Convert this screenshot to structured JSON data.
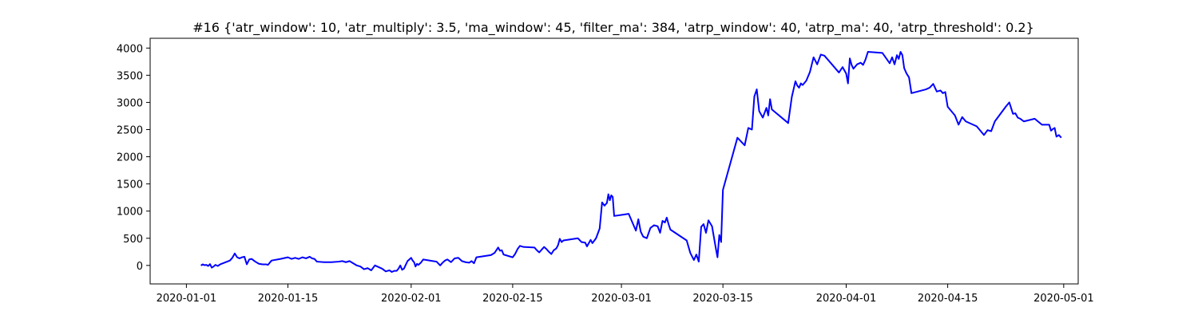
{
  "chart_data": {
    "type": "line",
    "title": "#16 {'atr_window': 10, 'atr_multiply': 3.5, 'ma_window': 45, 'filter_ma': 384, 'atrp_window': 40, 'atrp_ma': 40, 'atrp_threshold': 0.2}",
    "xlabel": "",
    "ylabel": "",
    "x_axis": {
      "type": "date",
      "range": [
        "2019-12-27",
        "2020-05-03"
      ],
      "ticks": [
        {
          "date": "2020-01-01",
          "label": "2020-01-01"
        },
        {
          "date": "2020-01-15",
          "label": "2020-01-15"
        },
        {
          "date": "2020-02-01",
          "label": "2020-02-01"
        },
        {
          "date": "2020-02-15",
          "label": "2020-02-15"
        },
        {
          "date": "2020-03-01",
          "label": "2020-03-01"
        },
        {
          "date": "2020-03-15",
          "label": "2020-03-15"
        },
        {
          "date": "2020-04-01",
          "label": "2020-04-01"
        },
        {
          "date": "2020-04-15",
          "label": "2020-04-15"
        },
        {
          "date": "2020-05-01",
          "label": "2020-05-01"
        }
      ]
    },
    "y_axis": {
      "range": [
        -340,
        4180
      ],
      "ticks": [
        0,
        500,
        1000,
        1500,
        2000,
        2500,
        3000,
        3500,
        4000
      ]
    },
    "grid": false,
    "legend": "none",
    "color": "#0000ff",
    "series": [
      {
        "points": [
          [
            "2020-01-03",
            0
          ],
          [
            "2020-01-03",
            20
          ],
          [
            "2020-01-03",
            5
          ],
          [
            "2020-01-03",
            10
          ],
          [
            "2020-01-04",
            -10
          ],
          [
            "2020-01-04",
            25
          ],
          [
            "2020-01-04",
            -40
          ],
          [
            "2020-01-04",
            -20
          ],
          [
            "2020-01-05",
            10
          ],
          [
            "2020-01-05",
            -10
          ],
          [
            "2020-01-05",
            20
          ],
          [
            "2020-01-07",
            90
          ],
          [
            "2020-01-07",
            140
          ],
          [
            "2020-01-07",
            220
          ],
          [
            "2020-01-08",
            150
          ],
          [
            "2020-01-08",
            130
          ],
          [
            "2020-01-08",
            150
          ],
          [
            "2020-01-09",
            160
          ],
          [
            "2020-01-09",
            20
          ],
          [
            "2020-01-09",
            110
          ],
          [
            "2020-01-10",
            120
          ],
          [
            "2020-01-10",
            70
          ],
          [
            "2020-01-11",
            30
          ],
          [
            "2020-01-11",
            20
          ],
          [
            "2020-01-12",
            20
          ],
          [
            "2020-01-12",
            10
          ],
          [
            "2020-01-12",
            50
          ],
          [
            "2020-01-12",
            90
          ],
          [
            "2020-01-14",
            120
          ],
          [
            "2020-01-15",
            150
          ],
          [
            "2020-01-15",
            120
          ],
          [
            "2020-01-16",
            140
          ],
          [
            "2020-01-16",
            120
          ],
          [
            "2020-01-17",
            150
          ],
          [
            "2020-01-17",
            130
          ],
          [
            "2020-01-18",
            160
          ],
          [
            "2020-01-18",
            130
          ],
          [
            "2020-01-18",
            120
          ],
          [
            "2020-01-19",
            70
          ],
          [
            "2020-01-20",
            60
          ],
          [
            "2020-01-21",
            60
          ],
          [
            "2020-01-22",
            70
          ],
          [
            "2020-01-22",
            80
          ],
          [
            "2020-01-23",
            60
          ],
          [
            "2020-01-23",
            80
          ],
          [
            "2020-01-24",
            40
          ],
          [
            "2020-01-24",
            0
          ],
          [
            "2020-01-25",
            -20
          ],
          [
            "2020-01-25",
            -70
          ],
          [
            "2020-01-26",
            -50
          ],
          [
            "2020-01-26",
            -90
          ],
          [
            "2020-01-27",
            0
          ],
          [
            "2020-01-28",
            -60
          ],
          [
            "2020-01-28",
            -110
          ],
          [
            "2020-01-29",
            -90
          ],
          [
            "2020-01-29",
            -120
          ],
          [
            "2020-01-29",
            -100
          ],
          [
            "2020-01-30",
            -100
          ],
          [
            "2020-01-30",
            -60
          ],
          [
            "2020-01-30",
            0
          ],
          [
            "2020-01-30",
            -80
          ],
          [
            "2020-01-31",
            -60
          ],
          [
            "2020-01-31",
            80
          ],
          [
            "2020-02-01",
            140
          ],
          [
            "2020-02-01",
            90
          ],
          [
            "2020-02-01",
            60
          ],
          [
            "2020-02-01",
            -20
          ],
          [
            "2020-02-01",
            30
          ],
          [
            "2020-02-02",
            10
          ],
          [
            "2020-02-02",
            50
          ],
          [
            "2020-02-02",
            110
          ],
          [
            "2020-02-04",
            80
          ],
          [
            "2020-02-04",
            70
          ],
          [
            "2020-02-05",
            0
          ],
          [
            "2020-02-05",
            50
          ],
          [
            "2020-02-05",
            90
          ],
          [
            "2020-02-06",
            110
          ],
          [
            "2020-02-06",
            60
          ],
          [
            "2020-02-07",
            130
          ],
          [
            "2020-02-07",
            140
          ],
          [
            "2020-02-08",
            80
          ],
          [
            "2020-02-08",
            60
          ],
          [
            "2020-02-09",
            50
          ],
          [
            "2020-02-09",
            80
          ],
          [
            "2020-02-09",
            40
          ],
          [
            "2020-02-10",
            150
          ],
          [
            "2020-02-12",
            190
          ],
          [
            "2020-02-12",
            230
          ],
          [
            "2020-02-13",
            330
          ],
          [
            "2020-02-13",
            270
          ],
          [
            "2020-02-13",
            280
          ],
          [
            "2020-02-13",
            200
          ],
          [
            "2020-02-14",
            190
          ],
          [
            "2020-02-15",
            150
          ],
          [
            "2020-02-15",
            210
          ],
          [
            "2020-02-15",
            300
          ],
          [
            "2020-02-16",
            360
          ],
          [
            "2020-02-16",
            340
          ],
          [
            "2020-02-18",
            330
          ],
          [
            "2020-02-18",
            280
          ],
          [
            "2020-02-18",
            240
          ],
          [
            "2020-02-19",
            290
          ],
          [
            "2020-02-19",
            340
          ],
          [
            "2020-02-19",
            300
          ],
          [
            "2020-02-20",
            250
          ],
          [
            "2020-02-20",
            210
          ],
          [
            "2020-02-20",
            280
          ],
          [
            "2020-02-21",
            310
          ],
          [
            "2020-02-21",
            370
          ],
          [
            "2020-02-21",
            490
          ],
          [
            "2020-02-21",
            430
          ],
          [
            "2020-02-22",
            460
          ],
          [
            "2020-02-23",
            480
          ],
          [
            "2020-02-24",
            500
          ],
          [
            "2020-02-24",
            430
          ],
          [
            "2020-02-25",
            420
          ],
          [
            "2020-02-25",
            350
          ],
          [
            "2020-02-25",
            410
          ],
          [
            "2020-02-25",
            470
          ],
          [
            "2020-02-26",
            410
          ],
          [
            "2020-02-26",
            500
          ],
          [
            "2020-02-27",
            680
          ],
          [
            "2020-02-27",
            1160
          ],
          [
            "2020-02-27",
            1100
          ],
          [
            "2020-02-28",
            1150
          ],
          [
            "2020-02-28",
            1310
          ],
          [
            "2020-02-28",
            1200
          ],
          [
            "2020-02-28",
            1290
          ],
          [
            "2020-02-28",
            1260
          ],
          [
            "2020-02-29",
            910
          ],
          [
            "2020-03-01",
            930
          ],
          [
            "2020-03-02",
            950
          ],
          [
            "2020-03-03",
            640
          ],
          [
            "2020-03-03",
            850
          ],
          [
            "2020-03-03",
            620
          ],
          [
            "2020-03-04",
            530
          ],
          [
            "2020-03-04",
            500
          ],
          [
            "2020-03-05",
            690
          ],
          [
            "2020-03-05",
            740
          ],
          [
            "2020-03-06",
            720
          ],
          [
            "2020-03-06",
            600
          ],
          [
            "2020-03-06",
            820
          ],
          [
            "2020-03-07",
            790
          ],
          [
            "2020-03-07",
            880
          ],
          [
            "2020-03-07",
            760
          ],
          [
            "2020-03-07",
            660
          ],
          [
            "2020-03-10",
            460
          ],
          [
            "2020-03-10",
            230
          ],
          [
            "2020-03-11",
            100
          ],
          [
            "2020-03-11",
            200
          ],
          [
            "2020-03-11",
            70
          ],
          [
            "2020-03-12",
            710
          ],
          [
            "2020-03-12",
            760
          ],
          [
            "2020-03-12",
            600
          ],
          [
            "2020-03-13",
            830
          ],
          [
            "2020-03-13",
            720
          ],
          [
            "2020-03-14",
            330
          ],
          [
            "2020-03-14",
            150
          ],
          [
            "2020-03-14",
            560
          ],
          [
            "2020-03-14",
            430
          ],
          [
            "2020-03-15",
            1390
          ],
          [
            "2020-03-17",
            2350
          ],
          [
            "2020-03-18",
            2210
          ],
          [
            "2020-03-18",
            2530
          ],
          [
            "2020-03-19",
            2500
          ],
          [
            "2020-03-19",
            3110
          ],
          [
            "2020-03-19",
            3240
          ],
          [
            "2020-03-20",
            2840
          ],
          [
            "2020-03-20",
            2720
          ],
          [
            "2020-03-21",
            2900
          ],
          [
            "2020-03-21",
            2760
          ],
          [
            "2020-03-21",
            3060
          ],
          [
            "2020-03-21",
            2870
          ],
          [
            "2020-03-24",
            2620
          ],
          [
            "2020-03-24",
            3100
          ],
          [
            "2020-03-25",
            3390
          ],
          [
            "2020-03-25",
            3310
          ],
          [
            "2020-03-25",
            3270
          ],
          [
            "2020-03-25",
            3350
          ],
          [
            "2020-03-26",
            3320
          ],
          [
            "2020-03-26",
            3400
          ],
          [
            "2020-03-27",
            3560
          ],
          [
            "2020-03-27",
            3830
          ],
          [
            "2020-03-28",
            3700
          ],
          [
            "2020-03-28",
            3880
          ],
          [
            "2020-03-29",
            3860
          ],
          [
            "2020-03-31",
            3550
          ],
          [
            "2020-03-31",
            3650
          ],
          [
            "2020-04-01",
            3530
          ],
          [
            "2020-04-01",
            3350
          ],
          [
            "2020-04-01",
            3810
          ],
          [
            "2020-04-01",
            3690
          ],
          [
            "2020-04-02",
            3620
          ],
          [
            "2020-04-02",
            3700
          ],
          [
            "2020-04-03",
            3730
          ],
          [
            "2020-04-03",
            3690
          ],
          [
            "2020-04-03",
            3790
          ],
          [
            "2020-04-04",
            3930
          ],
          [
            "2020-04-06",
            3910
          ],
          [
            "2020-04-07",
            3720
          ],
          [
            "2020-04-07",
            3830
          ],
          [
            "2020-04-07",
            3700
          ],
          [
            "2020-04-08",
            3870
          ],
          [
            "2020-04-08",
            3800
          ],
          [
            "2020-04-08",
            3930
          ],
          [
            "2020-04-08",
            3870
          ],
          [
            "2020-04-09",
            3630
          ],
          [
            "2020-04-09",
            3530
          ],
          [
            "2020-04-09",
            3460
          ],
          [
            "2020-04-10",
            3170
          ],
          [
            "2020-04-12",
            3240
          ],
          [
            "2020-04-12",
            3270
          ],
          [
            "2020-04-13",
            3340
          ],
          [
            "2020-04-13",
            3200
          ],
          [
            "2020-04-14",
            3220
          ],
          [
            "2020-04-14",
            3170
          ],
          [
            "2020-04-14",
            3190
          ],
          [
            "2020-04-15",
            2920
          ],
          [
            "2020-04-16",
            2760
          ],
          [
            "2020-04-16",
            2590
          ],
          [
            "2020-04-17",
            2730
          ],
          [
            "2020-04-17",
            2650
          ],
          [
            "2020-04-19",
            2560
          ],
          [
            "2020-04-20",
            2400
          ],
          [
            "2020-04-20",
            2490
          ],
          [
            "2020-04-21",
            2470
          ],
          [
            "2020-04-21",
            2650
          ],
          [
            "2020-04-23",
            2920
          ],
          [
            "2020-04-23",
            3000
          ],
          [
            "2020-04-24",
            2790
          ],
          [
            "2020-04-24",
            2800
          ],
          [
            "2020-04-24",
            2720
          ],
          [
            "2020-04-25",
            2700
          ],
          [
            "2020-04-25",
            2650
          ],
          [
            "2020-04-27",
            2700
          ],
          [
            "2020-04-28",
            2590
          ],
          [
            "2020-04-29",
            2590
          ],
          [
            "2020-04-29",
            2480
          ],
          [
            "2020-04-29",
            2510
          ],
          [
            "2020-04-29",
            2530
          ],
          [
            "2020-04-30",
            2370
          ],
          [
            "2020-04-30",
            2400
          ],
          [
            "2020-04-30",
            2350
          ]
        ]
      }
    ]
  }
}
